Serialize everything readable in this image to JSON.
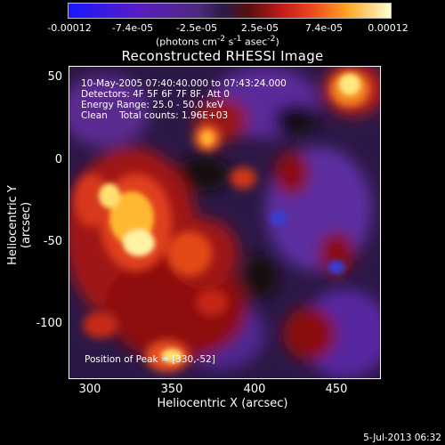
{
  "colorbar": {
    "ticks": [
      "-0.00012",
      "-7.4e-05",
      "-2.5e-05",
      "2.5e-05",
      "7.4e-05",
      "0.00012"
    ],
    "units_html": "(photons cm<sup>-2</sup> s<sup>-1</sup> asec<sup>-2</sup>)"
  },
  "title": "Reconstructed RHESSI Image",
  "info": {
    "time": "10-May-2005 07:40:40.000 to 07:43:24.000",
    "detectors": "Detectors: 4F 5F 6F 7F 8F, Att 0",
    "energy": "Energy Range: 25.0 - 50.0 keV",
    "clean": "Clean    Total counts: 1.96E+03",
    "peak": "Position of Peak = [330,-52]"
  },
  "axes": {
    "xlabel": "Heliocentric X (arcsec)",
    "ylabel": "Heliocentric Y (arcsec)",
    "xticks": [
      "300",
      "350",
      "400",
      "450"
    ],
    "yticks": [
      "50",
      "0",
      "-50",
      "-100"
    ]
  },
  "footer": "5-Jul-2013 06:32",
  "colors": {
    "negative_max": "#1a17ff",
    "zero": "#2a1b45",
    "positive_max": "#ffffd0"
  }
}
